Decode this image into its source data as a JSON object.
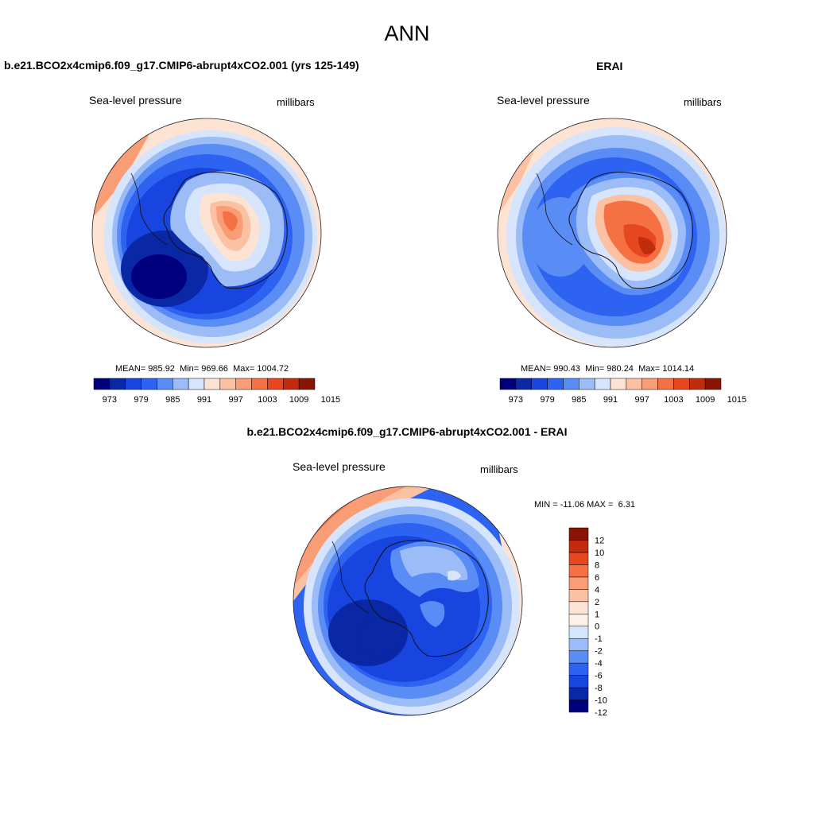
{
  "title": "ANN",
  "panels": {
    "model": {
      "title": "b.e21.BCO2x4cmip6.f09_g17.CMIP6-abrupt4xCO2.001 (yrs 125-149)",
      "field": "Sea-level pressure",
      "units": "millibars",
      "stats": {
        "mean_label": "MEAN=",
        "mean": "985.92",
        "min_label": "Min=",
        "min": "969.66",
        "max_label": "Max=",
        "max": "1004.72"
      }
    },
    "obs": {
      "title": "ERAI",
      "field": "Sea-level pressure",
      "units": "millibars",
      "stats": {
        "mean_label": "MEAN=",
        "mean": "990.43",
        "min_label": "Min=",
        "min": "980.24",
        "max_label": "Max=",
        "max": "1014.14"
      }
    },
    "diff": {
      "title": "b.e21.BCO2x4cmip6.f09_g17.CMIP6-abrupt4xCO2.001 - ERAI",
      "field": "Sea-level pressure",
      "units": "millibars",
      "stats": {
        "min_label": "MIN =",
        "min": "-11.06",
        "max_label": "MAX =",
        "max": "6.31"
      }
    }
  },
  "colorbars": {
    "absolute": {
      "colors": [
        "#00007f",
        "#0a27a6",
        "#1845e0",
        "#2e62f0",
        "#5a8cf5",
        "#9cbcf8",
        "#d6e5fb",
        "#fde3d3",
        "#fbc1a2",
        "#f89d75",
        "#f57144",
        "#e7471e",
        "#c12b0e",
        "#8a1404"
      ],
      "tick_labels": [
        "973",
        "979",
        "985",
        "991",
        "997",
        "1003",
        "1009",
        "1015"
      ]
    },
    "difference": {
      "colors": [
        "#00007f",
        "#0a27a6",
        "#1845e0",
        "#2e62f0",
        "#5a8cf5",
        "#9cbcf8",
        "#d6e5fb",
        "#fdf0e6",
        "#fde3d3",
        "#fbc1a2",
        "#f89d75",
        "#f57144",
        "#e7471e",
        "#c12b0e",
        "#8a1404"
      ],
      "tick_labels": [
        "12",
        "10",
        "8",
        "6",
        "4",
        "2",
        "1",
        "0",
        "-1",
        "-2",
        "-4",
        "-6",
        "-8",
        "-10",
        "-12"
      ]
    }
  }
}
